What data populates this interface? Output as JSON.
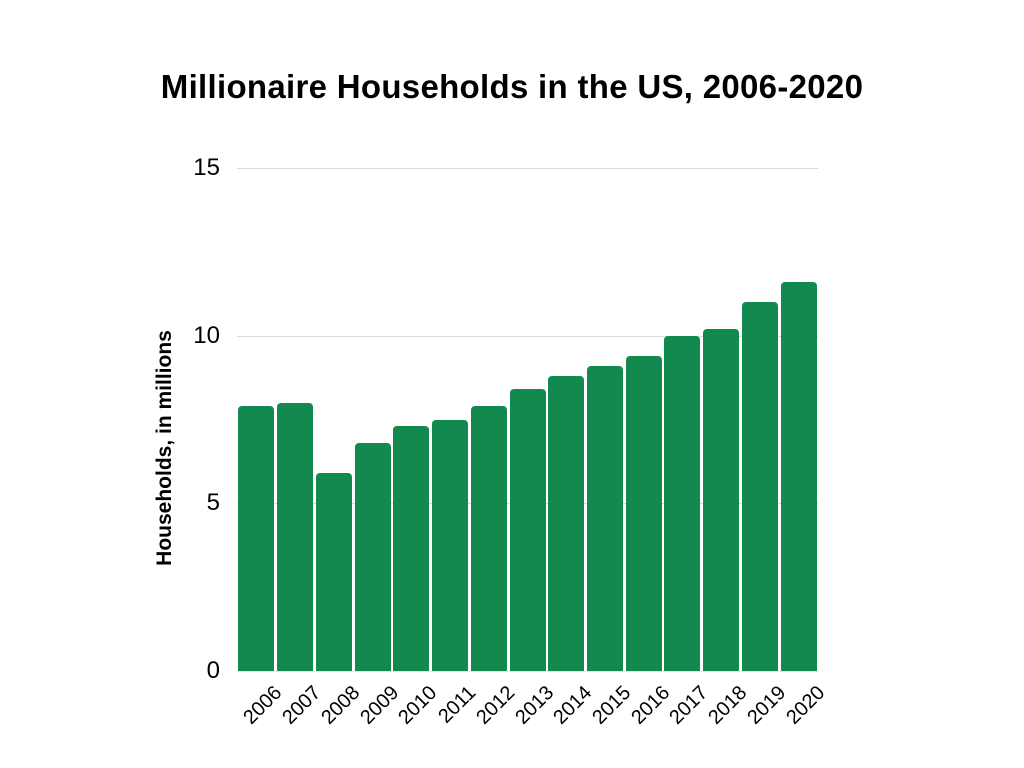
{
  "page": {
    "background_color": "#ffffff"
  },
  "chart_data": {
    "type": "bar",
    "title": "Millionaire Households in the US, 2006-2020",
    "xlabel": "",
    "ylabel": "Households, in millions",
    "categories": [
      "2006",
      "2007",
      "2008",
      "2009",
      "2010",
      "2011",
      "2012",
      "2013",
      "2014",
      "2015",
      "2016",
      "2017",
      "2018",
      "2019",
      "2020"
    ],
    "values": [
      7.9,
      8.0,
      5.9,
      6.8,
      7.3,
      7.5,
      7.9,
      8.4,
      8.8,
      9.1,
      9.4,
      10.0,
      10.2,
      11.0,
      11.6
    ],
    "ylim": [
      0,
      15
    ],
    "yticks": [
      0,
      5,
      10,
      15
    ],
    "grid": true,
    "legend_position": "none",
    "x_tick_rotation_deg": 45,
    "colors": {
      "bar": "#128a4f",
      "gridline": "#d9d9d9",
      "baseline": "#e3e3e3",
      "text": "#000000",
      "background": "#ffffff"
    }
  }
}
